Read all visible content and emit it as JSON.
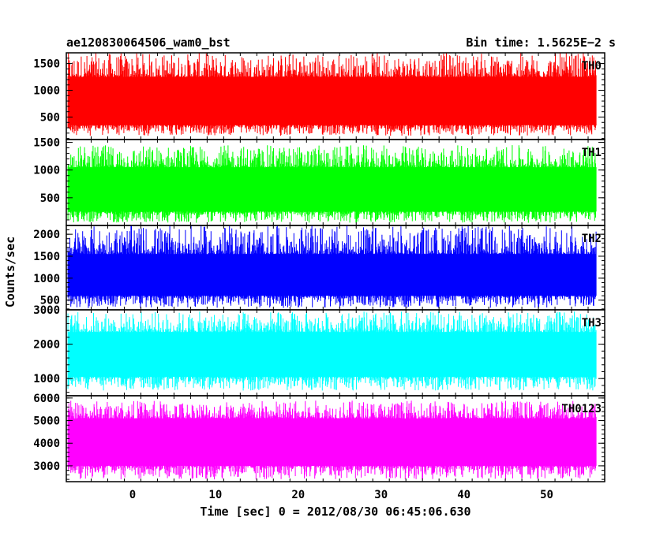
{
  "header": {
    "left_title": "ae120830064506_wam0_bst",
    "right_title": "Bin time: 1.5625E−2 s"
  },
  "chart_data": {
    "type": "line",
    "title": "ae120830064506_wam0_bst",
    "bin_time": "Bin time: 1.5625E−2 s",
    "xlabel": "Time [sec] 0 = 2012/08/30 06:45:06.630",
    "ylabel": "Counts/sec",
    "xlim": [
      -8,
      57
    ],
    "data_x_range": [
      -7.8,
      56
    ],
    "x_ticks": [
      0,
      10,
      20,
      30,
      40,
      50
    ],
    "x_tick_labels": [
      "0",
      "10",
      "20",
      "30",
      "40",
      "50"
    ],
    "series": [
      {
        "name": "TH0",
        "color": "#ff0000",
        "ylim": [
          80,
          1700
        ],
        "y_ticks": [
          500,
          1000,
          1500
        ],
        "y_tick_labels": [
          "500",
          "1000",
          "1500"
        ],
        "approx_range": [
          150,
          1700
        ],
        "approx_band": [
          350,
          1250
        ]
      },
      {
        "name": "TH1",
        "color": "#00ff00",
        "ylim": [
          0,
          1550
        ],
        "y_ticks": [
          500,
          1000,
          1500
        ],
        "y_tick_labels": [
          "500",
          "1000",
          "1500"
        ],
        "approx_range": [
          50,
          1450
        ],
        "approx_band": [
          250,
          1050
        ]
      },
      {
        "name": "TH2",
        "color": "#0000ff",
        "ylim": [
          280,
          2200
        ],
        "y_ticks": [
          500,
          1000,
          1500,
          2000
        ],
        "y_tick_labels": [
          "500",
          "1000",
          "1500",
          "2000"
        ],
        "approx_range": [
          320,
          2200
        ],
        "approx_band": [
          600,
          1550
        ]
      },
      {
        "name": "TH3",
        "color": "#00ffff",
        "ylim": [
          500,
          3000
        ],
        "y_ticks": [
          1000,
          2000,
          3000
        ],
        "y_tick_labels": [
          "1000",
          "2000",
          "3000"
        ],
        "approx_range": [
          650,
          2950
        ],
        "approx_band": [
          1050,
          2350
        ]
      },
      {
        "name": "TH0123",
        "color": "#ff00ff",
        "ylim": [
          2300,
          6100
        ],
        "y_ticks": [
          3000,
          4000,
          5000,
          6000
        ],
        "y_tick_labels": [
          "3000",
          "4000",
          "5000",
          "6000"
        ],
        "approx_range": [
          2400,
          5900
        ],
        "approx_band": [
          3000,
          5100
        ]
      }
    ]
  }
}
